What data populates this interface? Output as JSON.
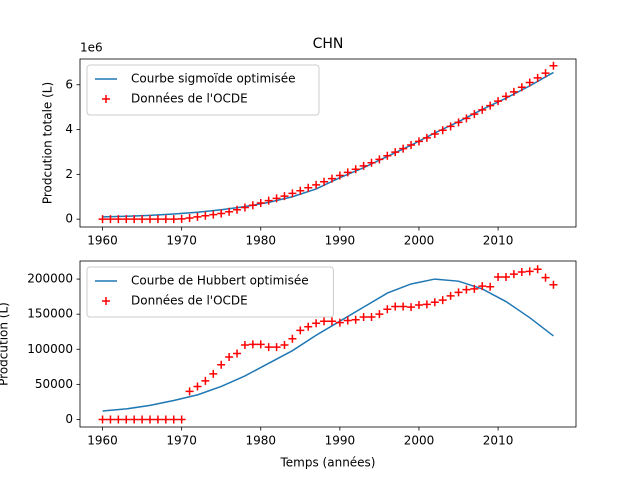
{
  "chart_data": [
    {
      "type": "line",
      "title": "CHN",
      "ylabel": "Prodcution totale (L)",
      "offset_label": "1e6",
      "xlim": [
        1957.15,
        2019.85
      ],
      "xticks": [
        1960,
        1970,
        1980,
        1990,
        2000,
        2010
      ],
      "ylim": [
        -0.35,
        7.15
      ],
      "yticks": [
        0,
        2,
        4,
        6
      ],
      "grid": false,
      "legend": "upper left",
      "series": [
        {
          "name": "Courbe sigmoïde optimisée",
          "color": "#1f77b4",
          "marker": "none",
          "x": [
            1960,
            1963,
            1966,
            1969,
            1972,
            1975,
            1978,
            1981,
            1984,
            1987,
            1990,
            1993,
            1996,
            1999,
            2002,
            2005,
            2008,
            2011,
            2014,
            2017
          ],
          "values": [
            0.1,
            0.13,
            0.17,
            0.23,
            0.31,
            0.42,
            0.56,
            0.75,
            1.0,
            1.35,
            1.85,
            2.3,
            2.8,
            3.3,
            3.85,
            4.35,
            4.9,
            5.4,
            5.95,
            6.55
          ]
        },
        {
          "name": "Données de l'OCDE",
          "color": "#ff0000",
          "marker": "+",
          "x": [
            1960,
            1961,
            1962,
            1963,
            1964,
            1965,
            1966,
            1967,
            1968,
            1969,
            1970,
            1971,
            1972,
            1973,
            1974,
            1975,
            1976,
            1977,
            1978,
            1979,
            1980,
            1981,
            1982,
            1983,
            1984,
            1985,
            1986,
            1987,
            1988,
            1989,
            1990,
            1991,
            1992,
            1993,
            1994,
            1995,
            1996,
            1997,
            1998,
            1999,
            2000,
            2001,
            2002,
            2003,
            2004,
            2005,
            2006,
            2007,
            2008,
            2009,
            2010,
            2011,
            2012,
            2013,
            2014,
            2015,
            2016,
            2017
          ],
          "values": [
            0,
            0,
            0,
            0,
            0,
            0,
            0,
            0,
            0,
            0,
            0.01,
            0.05,
            0.1,
            0.15,
            0.2,
            0.25,
            0.33,
            0.42,
            0.52,
            0.62,
            0.72,
            0.83,
            0.93,
            1.03,
            1.15,
            1.27,
            1.4,
            1.53,
            1.67,
            1.81,
            1.95,
            2.09,
            2.23,
            2.38,
            2.52,
            2.67,
            2.83,
            2.99,
            3.15,
            3.31,
            3.47,
            3.63,
            3.8,
            3.97,
            4.14,
            4.32,
            4.5,
            4.69,
            4.88,
            5.07,
            5.27,
            5.48,
            5.68,
            5.89,
            6.1,
            6.31,
            6.52,
            6.85
          ]
        }
      ]
    },
    {
      "type": "line",
      "ylabel": "Prodcution (L)",
      "xlabel": "Temps (années)",
      "xlim": [
        1957.15,
        2019.85
      ],
      "xticks": [
        1960,
        1970,
        1980,
        1990,
        2000,
        2010
      ],
      "ylim": [
        -10750,
        225750
      ],
      "yticks": [
        0,
        50000,
        100000,
        150000,
        200000
      ],
      "grid": false,
      "legend": "upper left",
      "series": [
        {
          "name": "Courbe de Hubbert optimisée",
          "color": "#1f77b4",
          "marker": "none",
          "x": [
            1960,
            1963,
            1966,
            1969,
            1972,
            1975,
            1978,
            1981,
            1984,
            1987,
            1990,
            1993,
            1996,
            1999,
            2002,
            2005,
            2008,
            2011,
            2014,
            2017
          ],
          "values": [
            12000,
            15000,
            20000,
            27000,
            35000,
            47000,
            62000,
            80000,
            98000,
            120000,
            140000,
            160000,
            180000,
            193000,
            200000,
            197000,
            186000,
            168000,
            145000,
            119000
          ]
        },
        {
          "name": "Données de l'OCDE",
          "color": "#ff0000",
          "marker": "+",
          "x": [
            1960,
            1961,
            1962,
            1963,
            1964,
            1965,
            1966,
            1967,
            1968,
            1969,
            1970,
            1971,
            1972,
            1973,
            1974,
            1975,
            1976,
            1977,
            1978,
            1979,
            1980,
            1981,
            1982,
            1983,
            1984,
            1985,
            1986,
            1987,
            1988,
            1989,
            1990,
            1991,
            1992,
            1993,
            1994,
            1995,
            1996,
            1997,
            1998,
            1999,
            2000,
            2001,
            2002,
            2003,
            2004,
            2005,
            2006,
            2007,
            2008,
            2009,
            2010,
            2011,
            2012,
            2013,
            2014,
            2015,
            2016,
            2017
          ],
          "values": [
            0,
            0,
            0,
            0,
            0,
            0,
            0,
            0,
            0,
            0,
            0,
            40000,
            47000,
            55000,
            65000,
            78000,
            89000,
            94000,
            106000,
            107000,
            107000,
            103000,
            103000,
            106000,
            115000,
            127000,
            132000,
            137000,
            140000,
            140000,
            138000,
            141000,
            142000,
            146000,
            146000,
            150000,
            157000,
            161000,
            161000,
            160000,
            163000,
            164000,
            167000,
            170000,
            176000,
            181000,
            185000,
            186000,
            190000,
            189000,
            203000,
            203000,
            207000,
            210000,
            211000,
            214000,
            202000,
            192000
          ]
        }
      ]
    }
  ]
}
